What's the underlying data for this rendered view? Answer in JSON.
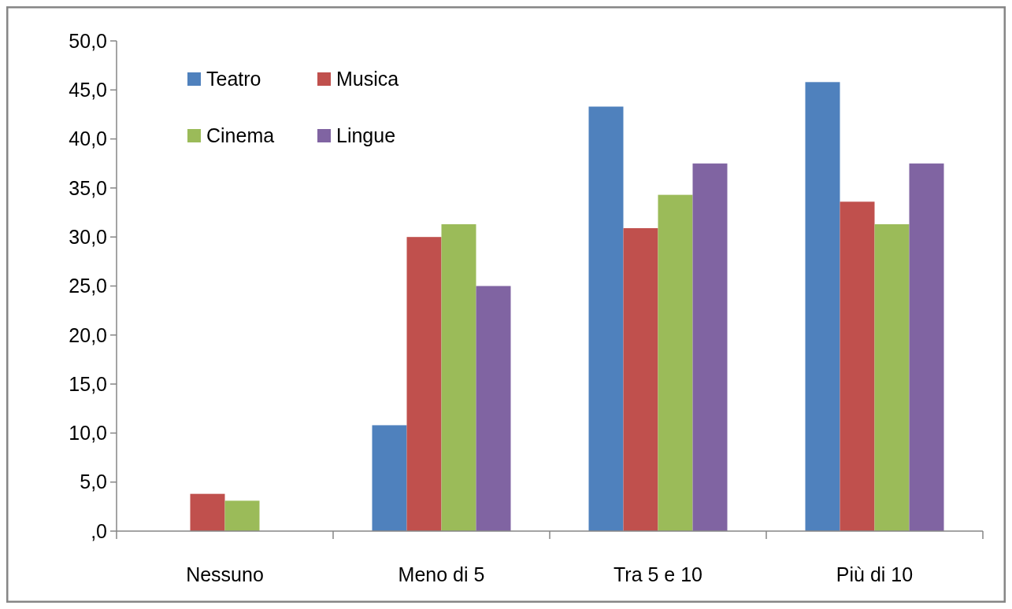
{
  "chart_data": {
    "type": "bar",
    "categories": [
      "Nessuno",
      "Meno di 5",
      "Tra 5 e 10",
      "Più di 10"
    ],
    "series": [
      {
        "name": "Teatro",
        "color": "#4f81bd",
        "values": [
          0,
          10.8,
          43.3,
          45.8
        ]
      },
      {
        "name": "Musica",
        "color": "#c0504d",
        "values": [
          3.8,
          30.0,
          30.9,
          33.6
        ]
      },
      {
        "name": "Cinema",
        "color": "#9bbb59",
        "values": [
          3.1,
          31.3,
          34.3,
          31.3
        ]
      },
      {
        "name": "Lingue",
        "color": "#8064a2",
        "values": [
          0,
          25.0,
          37.5,
          37.5
        ]
      }
    ],
    "ylim": [
      0,
      50
    ],
    "yticks": [
      {
        "value": 0,
        "label": ",0"
      },
      {
        "value": 5,
        "label": "5,0"
      },
      {
        "value": 10,
        "label": "10,0"
      },
      {
        "value": 15,
        "label": "15,0"
      },
      {
        "value": 20,
        "label": "20,0"
      },
      {
        "value": 25,
        "label": "25,0"
      },
      {
        "value": 30,
        "label": "30,0"
      },
      {
        "value": 35,
        "label": "35,0"
      },
      {
        "value": 40,
        "label": "40,0"
      },
      {
        "value": 45,
        "label": "45,0"
      },
      {
        "value": 50,
        "label": "50,0"
      }
    ],
    "grid": false,
    "legend": "top left"
  }
}
